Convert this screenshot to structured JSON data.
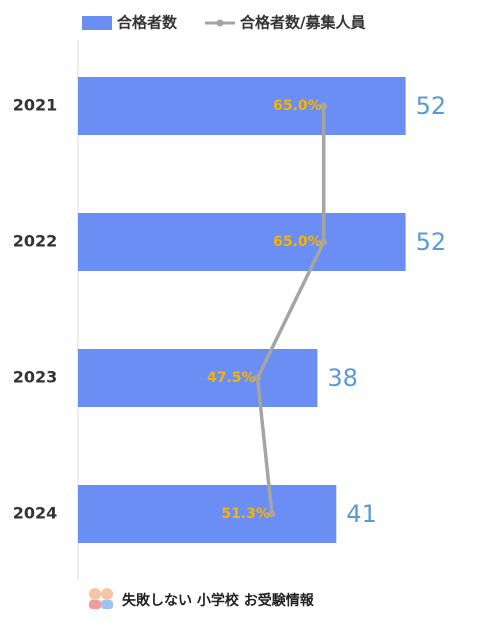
{
  "chart_data": {
    "type": "bar",
    "orientation": "horizontal",
    "categories": [
      "2021",
      "2022",
      "2023",
      "2024"
    ],
    "series": [
      {
        "name": "合格者数",
        "type": "bar",
        "color": "#6b8ef5",
        "label_color": "#5b9bd5",
        "values": [
          52,
          52,
          38,
          41
        ]
      },
      {
        "name": "合格者数/募集人員",
        "type": "line",
        "axis": "x2",
        "color": "#a5a5a5",
        "label_color": "#f4b400",
        "values": [
          65.0,
          65.0,
          47.5,
          51.3
        ],
        "value_labels": [
          "65.0%",
          "65.0%",
          "47.5%",
          "51.3%"
        ]
      }
    ],
    "xlim": [
      0,
      60
    ],
    "x2lim": [
      0,
      100
    ],
    "legend": "top"
  },
  "footer": "失敗しない 小学校 お受験情報"
}
